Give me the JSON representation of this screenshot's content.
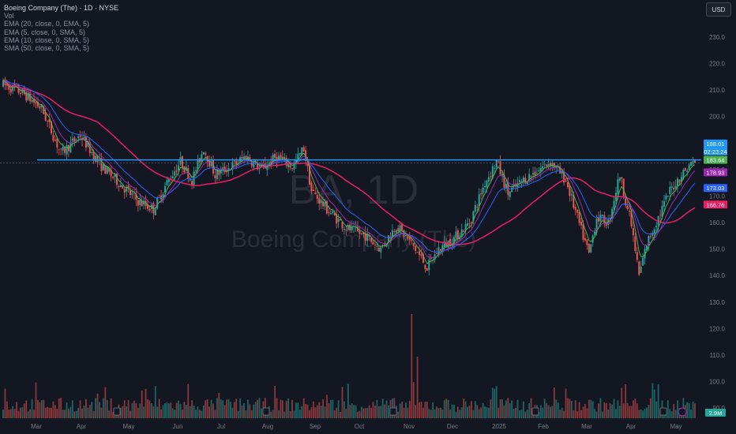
{
  "legend": {
    "title": "Boeing Company (The) · 1D · NYSE",
    "volume": "Vol",
    "indicators": [
      "EMA (20, close, 0, EMA, 5)",
      "EMA (5, close, 0, SMA, 5)",
      "EMA (10, close, 0, SMA, 5)",
      "SMA (50, close, 0, SMA, 5)"
    ]
  },
  "currency": "USD",
  "watermark": {
    "symbol": "BA, 1D",
    "name": "Boeing Company (The)"
  },
  "colors": {
    "background": "#131722",
    "up": "#26a69a",
    "down": "#ef5350",
    "ema20": "#2962ff",
    "ema5": "#4caf50",
    "ema10": "#9c27b0",
    "sma50": "#e91e63",
    "hline": "#2196f3"
  },
  "chart_data": {
    "type": "candlestick",
    "symbol": "BA",
    "y_axis": {
      "ticks": [
        90,
        100,
        110,
        120,
        130,
        140,
        150,
        160,
        170,
        180,
        190,
        200,
        210,
        220,
        230
      ],
      "ylim": [
        84,
        235
      ]
    },
    "x_axis": {
      "ticks": [
        "Mar",
        "Apr",
        "May",
        "Jun",
        "Jul",
        "Aug",
        "Sep",
        "Oct",
        "Nov",
        "Dec",
        "2025",
        "Feb",
        "Mar",
        "Apr",
        "May"
      ]
    },
    "anchors": [
      [
        0,
        212
      ],
      [
        10,
        209
      ],
      [
        20,
        203
      ],
      [
        30,
        186
      ],
      [
        40,
        193
      ],
      [
        50,
        182
      ],
      [
        60,
        175
      ],
      [
        70,
        168
      ],
      [
        78,
        165
      ],
      [
        85,
        175
      ],
      [
        92,
        183
      ],
      [
        98,
        176
      ],
      [
        104,
        188
      ],
      [
        110,
        178
      ],
      [
        118,
        181
      ],
      [
        126,
        185
      ],
      [
        134,
        180
      ],
      [
        142,
        185
      ],
      [
        150,
        181
      ],
      [
        156,
        188
      ],
      [
        160,
        172
      ],
      [
        168,
        165
      ],
      [
        178,
        158
      ],
      [
        188,
        155
      ],
      [
        196,
        150
      ],
      [
        204,
        159
      ],
      [
        212,
        152
      ],
      [
        220,
        143
      ],
      [
        226,
        150
      ],
      [
        234,
        154
      ],
      [
        242,
        160
      ],
      [
        250,
        175
      ],
      [
        256,
        183
      ],
      [
        262,
        171
      ],
      [
        270,
        176
      ],
      [
        278,
        180
      ],
      [
        284,
        183
      ],
      [
        292,
        176
      ],
      [
        300,
        157
      ],
      [
        304,
        148
      ],
      [
        308,
        162
      ],
      [
        314,
        160
      ],
      [
        320,
        178
      ],
      [
        326,
        159
      ],
      [
        330,
        140
      ],
      [
        334,
        152
      ],
      [
        340,
        162
      ],
      [
        346,
        172
      ],
      [
        352,
        178
      ],
      [
        358,
        183
      ]
    ],
    "hline": 183.64,
    "price_labels": [
      {
        "value": 188.01,
        "text": "188.01",
        "sub": "02:23:24",
        "color": "#2196f3"
      },
      {
        "value": 183.64,
        "text": "183.64",
        "color": "#4caf50"
      },
      {
        "value": 178.93,
        "text": "178.93",
        "color": "#9c27b0"
      },
      {
        "value": 173.03,
        "text": "173.03",
        "color": "#2962ff"
      },
      {
        "value": 166.76,
        "text": "166.76",
        "color": "#e91e63"
      }
    ],
    "volume_label": "2.9M",
    "volume_spike_index": 212
  }
}
